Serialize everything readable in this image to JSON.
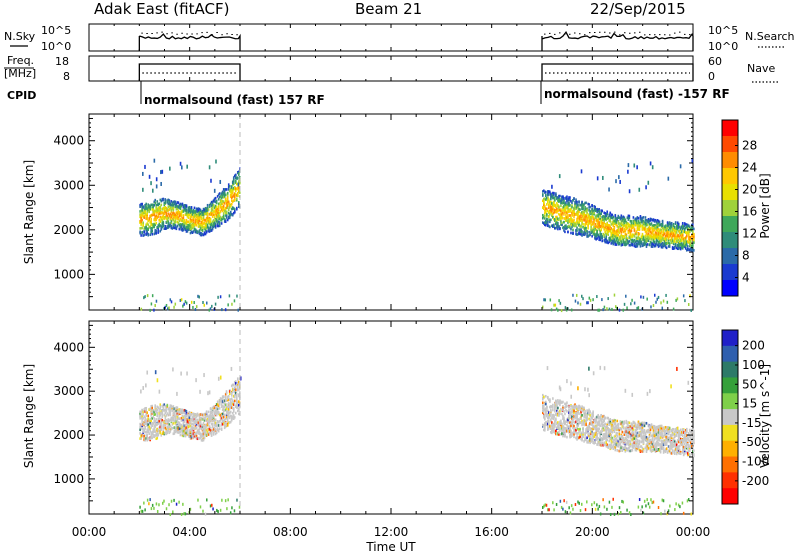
{
  "header": {
    "station": "Adak East (fitACF)",
    "beam": "Beam 21",
    "date": "22/Sep/2015"
  },
  "side_labels": {
    "nsky": "N.Sky",
    "nsearch": "N.Search",
    "freq_line1": "Freq.",
    "freq_line2": "[MHz]",
    "nave": "Nave",
    "cpid": "CPID"
  },
  "noise_axis": {
    "left_ticks": [
      "10^5",
      "10^0"
    ],
    "right_ticks": [
      "10^5",
      "10^0"
    ]
  },
  "freq_axis": {
    "left_ticks": [
      "18",
      "8"
    ],
    "right_ticks": [
      "60",
      "0"
    ]
  },
  "cpid_labels": [
    "normalsound (fast) 157 RF",
    "normalsound (fast) -157 RF"
  ],
  "power_colorbar": {
    "label": "Power [dB]",
    "ticks": [
      "28",
      "24",
      "20",
      "16",
      "12",
      "8",
      "4"
    ],
    "colors": [
      "#ff0000",
      "#ff4a00",
      "#ff8c00",
      "#ffc800",
      "#e8e000",
      "#9fd23a",
      "#3fa85a",
      "#2f8c7a",
      "#2a6aa8",
      "#1a3ad0",
      "#0000ff"
    ]
  },
  "velocity_colorbar": {
    "label": "Velocity [m s^-1]",
    "ticks": [
      "200",
      "100",
      "50",
      "15",
      "-15",
      "-50",
      "-100",
      "-200"
    ],
    "colors": [
      "#2020c8",
      "#2f5fae",
      "#2d7a68",
      "#35a03a",
      "#7fd04a",
      "#c8c8c8",
      "#f0e020",
      "#ffb000",
      "#ff7000",
      "#ff3000",
      "#ff0000"
    ]
  },
  "chart_data": [
    {
      "type": "heatmap",
      "panel": "power",
      "ylabel": "Slant Range [km]",
      "yticks": [
        1000,
        2000,
        3000,
        4000
      ],
      "ylim": [
        200,
        4600
      ],
      "xlim": [
        0,
        24
      ],
      "xticks": [
        "00:00",
        "04:00",
        "08:00",
        "12:00",
        "16:00",
        "20:00",
        "00:00"
      ],
      "observation_windows_hours": [
        [
          2.0,
          6.0
        ],
        [
          18.0,
          24.0
        ]
      ],
      "scatter_bands": [
        {
          "t": [
            2.0,
            2.5,
            3.0,
            3.5,
            4.0,
            4.5,
            5.0,
            5.5,
            6.0
          ],
          "center_km": [
            2250,
            2300,
            2400,
            2350,
            2250,
            2200,
            2400,
            2650,
            3000
          ],
          "width_km": [
            350,
            400,
            350,
            300,
            300,
            300,
            350,
            400,
            450
          ],
          "peak_db": 22
        },
        {
          "t": [
            18.0,
            18.75,
            19.5,
            20.25,
            21.0,
            21.75,
            22.5,
            23.25,
            24.0
          ],
          "center_km": [
            2550,
            2400,
            2300,
            2150,
            2000,
            2000,
            1950,
            1900,
            1850
          ],
          "width_km": [
            400,
            400,
            400,
            350,
            350,
            350,
            300,
            300,
            300
          ],
          "peak_db": 24
        }
      ],
      "colorbar_range_db": [
        0,
        32
      ]
    },
    {
      "type": "heatmap",
      "panel": "velocity",
      "ylabel": "Slant Range [km]",
      "yticks": [
        1000,
        2000,
        3000,
        4000
      ],
      "ylim": [
        200,
        4600
      ],
      "xlim": [
        0,
        24
      ],
      "xticks": [
        "00:00",
        "04:00",
        "08:00",
        "12:00",
        "16:00",
        "20:00",
        "00:00"
      ],
      "xlabel": "Time UT",
      "observation_windows_hours": [
        [
          2.0,
          6.0
        ],
        [
          18.0,
          24.0
        ]
      ],
      "scatter_bands": [
        {
          "t": [
            2.0,
            2.5,
            3.0,
            3.5,
            4.0,
            4.5,
            5.0,
            5.5,
            6.0
          ],
          "center_km": [
            2250,
            2300,
            2400,
            2350,
            2250,
            2200,
            2400,
            2650,
            3000
          ],
          "width_km": [
            350,
            400,
            350,
            300,
            300,
            300,
            350,
            400,
            450
          ],
          "dominant_velocity": 0
        },
        {
          "t": [
            18.0,
            18.75,
            19.5,
            20.25,
            21.0,
            21.75,
            22.5,
            23.25,
            24.0
          ],
          "center_km": [
            2550,
            2400,
            2300,
            2150,
            2000,
            2000,
            1950,
            1900,
            1850
          ],
          "width_km": [
            400,
            400,
            400,
            350,
            350,
            350,
            300,
            300,
            300
          ],
          "dominant_velocity": 0
        }
      ],
      "colorbar_range_ms": [
        -250,
        250
      ]
    }
  ]
}
